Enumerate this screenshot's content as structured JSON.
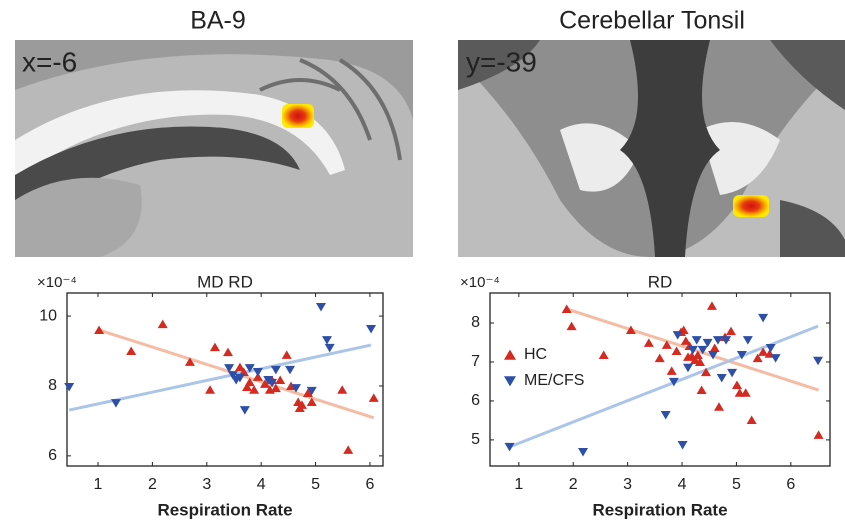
{
  "panels": [
    {
      "title": "BA-9",
      "coordinate": "x=-6"
    },
    {
      "title": "Cerebellar Tonsil",
      "coordinate": "y=-39"
    }
  ],
  "chart_data": [
    {
      "type": "scatter",
      "title": "MD RD",
      "y_multiplier": "×10⁻⁴",
      "x_label": "Respiration Rate",
      "xlim": [
        0.43,
        6.24
      ],
      "ylim": [
        5.71,
        10.66
      ],
      "xticks": [
        1,
        2,
        3,
        4,
        5,
        6
      ],
      "yticks": [
        6,
        8,
        10
      ],
      "series": [
        {
          "name": "HC",
          "color": "#d42a20",
          "marker": "^",
          "fit_color": "#f6bba3",
          "x": [
            1.02,
            1.61,
            2.19,
            2.69,
            3.06,
            3.15,
            3.39,
            3.61,
            3.68,
            3.74,
            3.79,
            3.87,
            3.94,
            4.07,
            4.16,
            4.2,
            4.27,
            4.35,
            4.47,
            4.55,
            4.68,
            4.71,
            4.75,
            4.86,
            4.93,
            5.49,
            5.6,
            6.07
          ],
          "values": [
            9.6,
            9.0,
            9.77,
            8.69,
            7.89,
            9.11,
            8.97,
            8.54,
            8.4,
            7.97,
            8.11,
            7.89,
            8.26,
            8.06,
            7.89,
            8.17,
            7.94,
            8.17,
            8.89,
            8.0,
            7.54,
            7.37,
            7.46,
            7.8,
            7.54,
            7.89,
            6.17,
            7.66
          ],
          "fit_x": [
            1.02,
            6.07
          ],
          "fit_y": [
            9.6,
            7.09
          ]
        },
        {
          "name": "ME/CFS",
          "color": "#2e4fa8",
          "marker": "v",
          "fit_color": "#abc5e8",
          "x": [
            0.47,
            1.33,
            3.41,
            3.48,
            3.54,
            3.61,
            3.7,
            3.79,
            3.94,
            4.13,
            4.2,
            4.27,
            4.53,
            4.64,
            4.93,
            5.1,
            5.21,
            5.26,
            6.02
          ],
          "values": [
            7.97,
            7.51,
            8.51,
            8.31,
            8.17,
            8.23,
            7.31,
            8.51,
            8.4,
            8.17,
            8.09,
            8.46,
            8.46,
            7.94,
            7.86,
            10.26,
            9.31,
            9.09,
            9.63
          ],
          "fit_x": [
            0.47,
            6.02
          ],
          "fit_y": [
            7.31,
            9.17
          ]
        }
      ]
    },
    {
      "type": "scatter",
      "title": "RD",
      "y_multiplier": "×10⁻⁴",
      "x_label": "Respiration Rate",
      "legend": "upper left",
      "xlim": [
        0.47,
        6.72
      ],
      "ylim": [
        4.33,
        8.77
      ],
      "xticks": [
        1,
        2,
        3,
        4,
        5,
        6
      ],
      "yticks": [
        5,
        6,
        7,
        8
      ],
      "series": [
        {
          "name": "HC",
          "color": "#d42a20",
          "marker": "^",
          "fit_color": "#f6bba3",
          "x": [
            1.88,
            1.97,
            2.56,
            3.06,
            3.39,
            3.59,
            3.72,
            3.81,
            3.9,
            3.98,
            4.03,
            4.07,
            4.11,
            4.14,
            4.18,
            4.24,
            4.29,
            4.33,
            4.36,
            4.44,
            4.55,
            4.6,
            4.68,
            4.79,
            4.9,
            5.01,
            5.06,
            5.17,
            5.28,
            5.39,
            5.49,
            5.61,
            6.51
          ],
          "values": [
            8.36,
            7.92,
            7.18,
            7.82,
            7.49,
            7.1,
            7.44,
            6.77,
            7.28,
            7.77,
            7.82,
            7.54,
            7.13,
            7.41,
            7.15,
            7.05,
            7.18,
            7.0,
            6.28,
            6.74,
            8.44,
            7.36,
            5.85,
            7.64,
            7.79,
            6.41,
            6.21,
            6.21,
            5.51,
            7.1,
            7.26,
            7.21,
            5.13
          ],
          "fit_x": [
            1.88,
            6.51
          ],
          "fit_y": [
            8.36,
            6.28
          ]
        },
        {
          "name": "ME/CFS",
          "color": "#2e4fa8",
          "marker": "v",
          "fit_color": "#abc5e8",
          "x": [
            0.83,
            2.18,
            3.7,
            3.85,
            3.92,
            4.01,
            4.11,
            4.2,
            4.27,
            4.38,
            4.47,
            4.57,
            4.66,
            4.73,
            4.81,
            4.92,
            5.1,
            5.21,
            5.49,
            5.63,
            5.72,
            6.5
          ],
          "values": [
            4.82,
            4.69,
            5.64,
            6.49,
            7.69,
            4.87,
            6.85,
            7.31,
            7.56,
            7.31,
            7.49,
            7.18,
            7.56,
            6.59,
            7.56,
            6.72,
            7.18,
            7.56,
            8.13,
            7.36,
            7.1,
            7.03
          ],
          "fit_x": [
            0.83,
            6.5
          ],
          "fit_y": [
            4.82,
            7.92
          ]
        }
      ]
    }
  ]
}
